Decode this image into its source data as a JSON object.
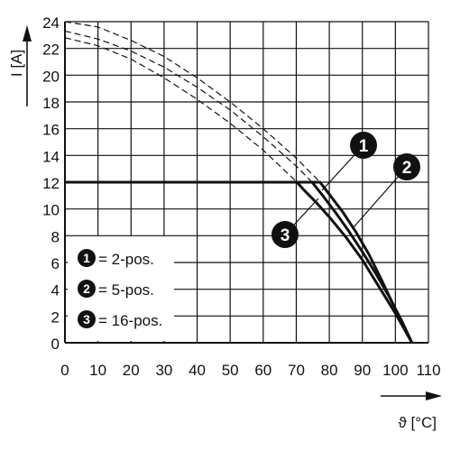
{
  "chart_data": {
    "type": "line",
    "ylabel": "I [A]",
    "xlabel": "ϑ [°C]",
    "xlim": [
      0,
      110
    ],
    "ylim": [
      0,
      24
    ],
    "xticks": [
      "0",
      "10",
      "20",
      "30",
      "40",
      "50",
      "60",
      "70",
      "80",
      "90",
      "100",
      "110"
    ],
    "yticks": [
      "0",
      "2",
      "4",
      "6",
      "8",
      "10",
      "12",
      "14",
      "16",
      "18",
      "20",
      "22",
      "24"
    ],
    "grid": true,
    "legend_position": "bottom-left",
    "legend": [
      {
        "badge": "1",
        "label": "= 2-pos."
      },
      {
        "badge": "2",
        "label": "= 5-pos."
      },
      {
        "badge": "3",
        "label": "= 16-pos."
      }
    ],
    "callouts": [
      {
        "badge": "1",
        "series": 0
      },
      {
        "badge": "2",
        "series": 1
      },
      {
        "badge": "3",
        "series": 2
      }
    ],
    "series": [
      {
        "x": [
          0,
          77.2,
          80,
          84,
          88,
          92,
          96,
          100,
          103,
          105
        ],
        "y": [
          12,
          12,
          11.1,
          9.8,
          8.3,
          6.6,
          4.6,
          2.5,
          1.0,
          0
        ],
        "dashed_x": [
          0,
          10,
          20,
          30,
          40,
          50,
          60,
          70,
          77.2
        ],
        "dashed_y": [
          24,
          23.6,
          22.6,
          21.4,
          19.8,
          18.0,
          16.0,
          13.8,
          12
        ]
      },
      {
        "x": [
          0,
          74.8,
          78,
          82,
          86,
          90,
          94,
          98,
          102,
          105
        ],
        "y": [
          12,
          12,
          11.0,
          9.7,
          8.3,
          6.8,
          5.2,
          3.5,
          1.6,
          0
        ],
        "dashed_x": [
          0,
          10,
          20,
          30,
          40,
          50,
          60,
          70,
          74.8
        ],
        "dashed_y": [
          23.3,
          22.7,
          21.8,
          20.6,
          19.1,
          17.4,
          15.4,
          13.2,
          12
        ]
      },
      {
        "x": [
          0,
          70.2,
          72,
          76,
          80,
          85,
          90,
          95,
          100,
          105
        ],
        "y": [
          12,
          12,
          11.5,
          10.5,
          9.4,
          7.9,
          6.2,
          4.2,
          2.2,
          0
        ],
        "dashed_x": [
          0,
          10,
          20,
          30,
          40,
          50,
          60,
          70.2
        ],
        "dashed_y": [
          22.8,
          22.2,
          21.2,
          19.8,
          18.2,
          16.4,
          14.4,
          12
        ]
      }
    ]
  }
}
